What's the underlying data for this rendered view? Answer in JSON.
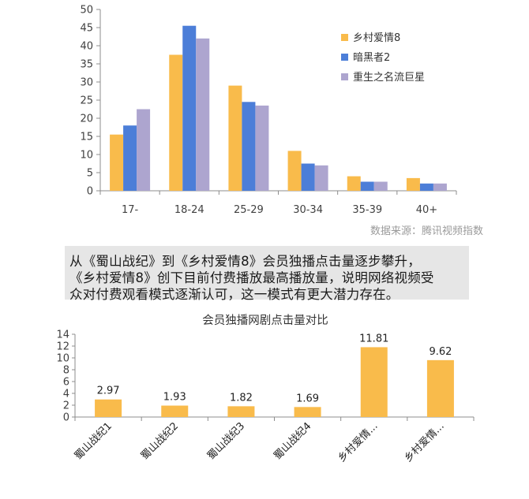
{
  "source_note": "数据来源：腾讯视频指数",
  "caption": {
    "lines": [
      "从《蜀山战纪》到《乡村爱情8》会员独播点击量逐步攀升，",
      "《乡村爱情8》创下目前付费播放最高播放量，说明网络视频受",
      "众对付费观看模式逐渐认可，这一模式有更大潜力存在。"
    ]
  },
  "colors": {
    "orange": "#f9bb4b",
    "blue": "#4c7ed8",
    "purple": "#ada5cf",
    "axis": "#8c8c8c",
    "grid_text": "#404040"
  },
  "chart_data": [
    {
      "type": "bar",
      "title": "",
      "xlabel": "",
      "ylabel": "",
      "categories": [
        "17-",
        "18-24",
        "25-29",
        "30-34",
        "35-39",
        "40+"
      ],
      "ylim": [
        0,
        50
      ],
      "yticks": [
        0,
        5,
        10,
        15,
        20,
        25,
        30,
        35,
        40,
        45,
        50
      ],
      "grid": false,
      "legend_position": "right",
      "series": [
        {
          "name": "乡村爱情8",
          "color": "#f9bb4b",
          "values": [
            15.5,
            37.5,
            29,
            11,
            4,
            3.5
          ]
        },
        {
          "name": "暗黑者2",
          "color": "#4c7ed8",
          "values": [
            18,
            45.5,
            24.5,
            7.5,
            2.5,
            2
          ]
        },
        {
          "name": "重生之名流巨星",
          "color": "#ada5cf",
          "values": [
            22.5,
            42,
            23.5,
            7,
            2.5,
            2
          ]
        }
      ]
    },
    {
      "type": "bar",
      "title": "会员独播网剧点击量对比",
      "xlabel": "",
      "ylabel": "",
      "categories": [
        "蜀山战纪1",
        "蜀山战纪2",
        "蜀山战纪3",
        "蜀山战纪4",
        "乡村爱情...",
        "乡村爱情..."
      ],
      "ylim": [
        0,
        14
      ],
      "yticks": [
        0,
        2,
        4,
        6,
        8,
        10,
        12,
        14
      ],
      "grid": false,
      "series": [
        {
          "color": "#f9bb4b",
          "values": [
            2.97,
            1.93,
            1.82,
            1.69,
            11.81,
            9.62
          ]
        }
      ],
      "data_labels": [
        "2.97",
        "1.93",
        "1.82",
        "1.69",
        "11.81",
        "9.62"
      ]
    }
  ]
}
